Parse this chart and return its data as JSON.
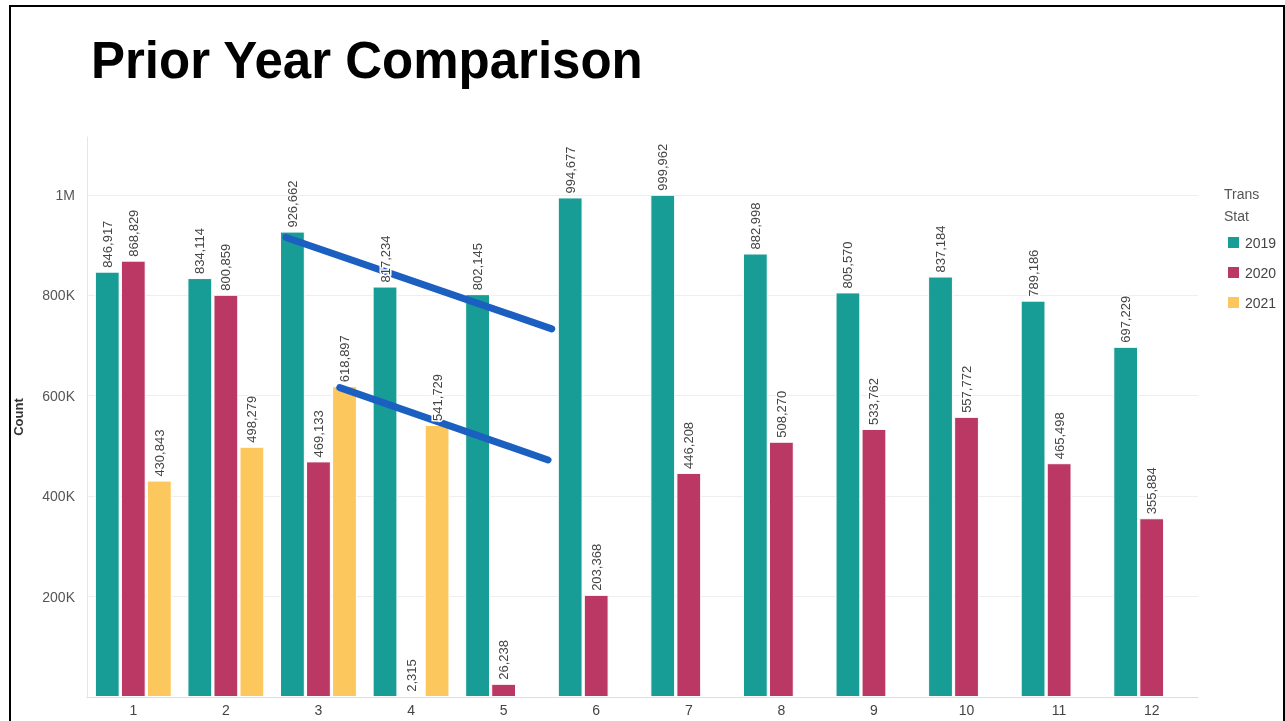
{
  "chart_data": {
    "type": "bar",
    "title": "Prior Year Comparison",
    "ylabel": "Count",
    "legend_title": "Trans Stat",
    "x": [
      1,
      2,
      3,
      4,
      5,
      6,
      7,
      8,
      9,
      10,
      11,
      12
    ],
    "xlim": [
      0.5,
      12.5
    ],
    "xticks": [
      1,
      2,
      3,
      4,
      5,
      6,
      7,
      8,
      9,
      10,
      11,
      12
    ],
    "ylim": [
      0,
      1115000
    ],
    "yticks": [
      {
        "value": 200000,
        "label": "200K"
      },
      {
        "value": 400000,
        "label": "400K"
      },
      {
        "value": 600000,
        "label": "600K"
      },
      {
        "value": 800000,
        "label": "800K"
      },
      {
        "value": 1000000,
        "label": "1M"
      }
    ],
    "series": [
      {
        "name": "2019",
        "color": "#179c96",
        "values": [
          846917,
          834114,
          926662,
          817234,
          802145,
          994677,
          999962,
          882998,
          805570,
          837184,
          789186,
          697229
        ],
        "value_labels": [
          "846,917",
          "834,114",
          "926,662",
          "817,234",
          "802,145",
          "994,677",
          "999,962",
          "882,998",
          "805,570",
          "837,184",
          "789,186",
          "697,229"
        ]
      },
      {
        "name": "2020",
        "color": "#bb3764",
        "values": [
          868829,
          800859,
          469133,
          2315,
          26238,
          203368,
          446208,
          508270,
          533762,
          557772,
          465498,
          355884
        ],
        "value_labels": [
          "868,829",
          "800,859",
          "469,133",
          "2,315",
          "26,238",
          "203,368",
          "446,208",
          "508,270",
          "533,762",
          "557,772",
          "465,498",
          "355,884"
        ]
      },
      {
        "name": "2021",
        "color": "#fcc75c",
        "values": [
          430843,
          498279,
          618897,
          541729,
          null,
          null,
          null,
          null,
          null,
          null,
          null,
          null
        ],
        "value_labels": [
          "430,843",
          "498,279",
          "618,897",
          "541,729",
          null,
          null,
          null,
          null,
          null,
          null,
          null,
          null
        ]
      },
      {
        "type": "line",
        "color": "#1b5fc1",
        "x": [
          2.65,
          5.52
        ],
        "values": [
          915000,
          733000
        ]
      },
      {
        "type": "line",
        "color": "#1b5fc1",
        "x": [
          3.23,
          5.48
        ],
        "values": [
          616000,
          472000
        ]
      }
    ],
    "grid": "y",
    "legend": "top right",
    "marker": "none"
  }
}
